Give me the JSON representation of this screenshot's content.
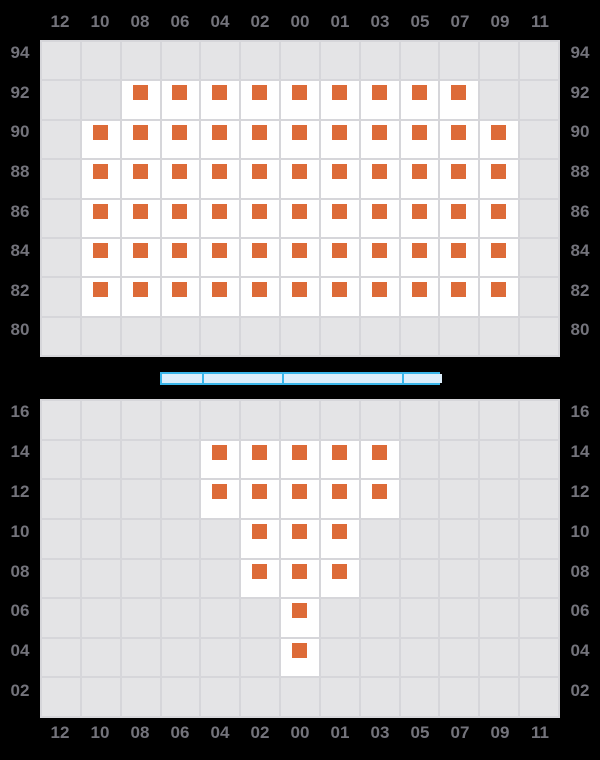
{
  "colors": {
    "background": "#000000",
    "empty_cell": "#e4e4e6",
    "data_cell": "#ffffff",
    "grid_line": "#d6d6da",
    "marker_orange": "#dd6b38",
    "tick_text": "#73737b",
    "scrollbar_border": "#3ab6ea",
    "scrollbar_fill": "#dceefb"
  },
  "scrollbar": {
    "segments": [
      40,
      80,
      120,
      40
    ]
  },
  "chart_data": [
    {
      "type": "heatmap",
      "title": "",
      "x_axis_position": "top",
      "x_labels": [
        "12",
        "10",
        "08",
        "06",
        "04",
        "02",
        "00",
        "01",
        "03",
        "05",
        "07",
        "09",
        "11"
      ],
      "y_labels": [
        "94",
        "92",
        "90",
        "88",
        "86",
        "84",
        "82",
        "80"
      ],
      "marker": "orange-square",
      "legend": "white cell with orange square = data present, gray cell = no data",
      "rows": [
        {
          "y": "94",
          "active_columns": []
        },
        {
          "y": "92",
          "active_columns": [
            "08",
            "06",
            "04",
            "02",
            "00",
            "01",
            "03",
            "05",
            "07"
          ]
        },
        {
          "y": "90",
          "active_columns": [
            "10",
            "08",
            "06",
            "04",
            "02",
            "00",
            "01",
            "03",
            "05",
            "07",
            "09"
          ]
        },
        {
          "y": "88",
          "active_columns": [
            "10",
            "08",
            "06",
            "04",
            "02",
            "00",
            "01",
            "03",
            "05",
            "07",
            "09"
          ]
        },
        {
          "y": "86",
          "active_columns": [
            "10",
            "08",
            "06",
            "04",
            "02",
            "00",
            "01",
            "03",
            "05",
            "07",
            "09"
          ]
        },
        {
          "y": "84",
          "active_columns": [
            "10",
            "08",
            "06",
            "04",
            "02",
            "00",
            "01",
            "03",
            "05",
            "07",
            "09"
          ]
        },
        {
          "y": "82",
          "active_columns": [
            "10",
            "08",
            "06",
            "04",
            "02",
            "00",
            "01",
            "03",
            "05",
            "07",
            "09"
          ]
        },
        {
          "y": "80",
          "active_columns": []
        }
      ]
    },
    {
      "type": "heatmap",
      "title": "",
      "x_axis_position": "bottom",
      "x_labels": [
        "12",
        "10",
        "08",
        "06",
        "04",
        "02",
        "00",
        "01",
        "03",
        "05",
        "07",
        "09",
        "11"
      ],
      "y_labels": [
        "16",
        "14",
        "12",
        "10",
        "08",
        "06",
        "04",
        "02"
      ],
      "marker": "orange-square",
      "legend": "white cell with orange square = data present, gray cell = no data",
      "rows": [
        {
          "y": "16",
          "active_columns": []
        },
        {
          "y": "14",
          "active_columns": [
            "04",
            "02",
            "00",
            "01",
            "03"
          ]
        },
        {
          "y": "12",
          "active_columns": [
            "04",
            "02",
            "00",
            "01",
            "03"
          ]
        },
        {
          "y": "10",
          "active_columns": [
            "02",
            "00",
            "01"
          ]
        },
        {
          "y": "08",
          "active_columns": [
            "02",
            "00",
            "01"
          ]
        },
        {
          "y": "06",
          "active_columns": [
            "00"
          ]
        },
        {
          "y": "04",
          "active_columns": [
            "00"
          ]
        },
        {
          "y": "02",
          "active_columns": []
        }
      ]
    }
  ]
}
